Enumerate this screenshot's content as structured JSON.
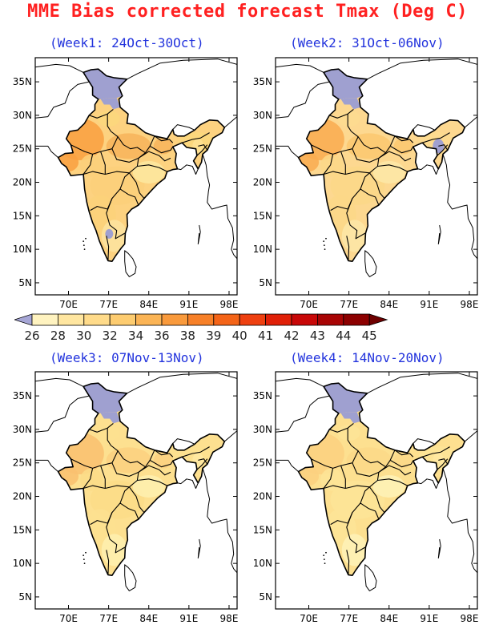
{
  "title": "MME Bias corrected forecast Tmax (Deg C)",
  "panels": [
    {
      "label": "(Week1: 24Oct-30Oct)",
      "shade": [
        "#fdd280",
        "#f9a040",
        "#fbd07a",
        "#fde9a0",
        "#fbd87c",
        "#f7b45a",
        "#fbd27a",
        "#fde4a0"
      ],
      "north": "#9fa0d0",
      "ne": "#ffe090"
    },
    {
      "label": "(Week2: 31Oct-06Nov)",
      "shade": [
        "#fdd890",
        "#f9ac50",
        "#fcd888",
        "#fde9a8",
        "#fddc90",
        "#fbc870",
        "#fcd888",
        "#fde8a8"
      ],
      "north": "#9fa0d0",
      "ne": "#a0a0d0"
    },
    {
      "label": "(Week3: 07Nov-13Nov)",
      "shade": [
        "#fde090",
        "#f9c070",
        "#fcdc88",
        "#fef0b0",
        "#fde090",
        "#fcd080",
        "#fde090",
        "#fef0b0"
      ],
      "north": "#9fa0d0",
      "ne": "#ffe8a0"
    },
    {
      "label": "(Week4: 14Nov-20Nov)",
      "shade": [
        "#fde090",
        "#fcd080",
        "#fde498",
        "#fef2b8",
        "#fde498",
        "#fcd888",
        "#fde498",
        "#fef2b8"
      ],
      "north": "#9fa0d0",
      "ne": "#ffe8a0"
    }
  ],
  "lat_ticks": [
    "35N",
    "30N",
    "25N",
    "20N",
    "15N",
    "10N",
    "5N"
  ],
  "lon_ticks": [
    "70E",
    "77E",
    "84E",
    "91E",
    "98E"
  ],
  "colorbar": {
    "labels": [
      "26",
      "28",
      "30",
      "32",
      "34",
      "36",
      "38",
      "39",
      "40",
      "41",
      "42",
      "43",
      "44",
      "45"
    ],
    "colors": [
      "#a6a6d6",
      "#fff3c0",
      "#ffe6a0",
      "#ffdb8a",
      "#fdcc70",
      "#fbb455",
      "#f99a3c",
      "#f78028",
      "#f46418",
      "#ee4010",
      "#e02008",
      "#c80808",
      "#a80404",
      "#8c0000",
      "#6e0000"
    ]
  }
}
